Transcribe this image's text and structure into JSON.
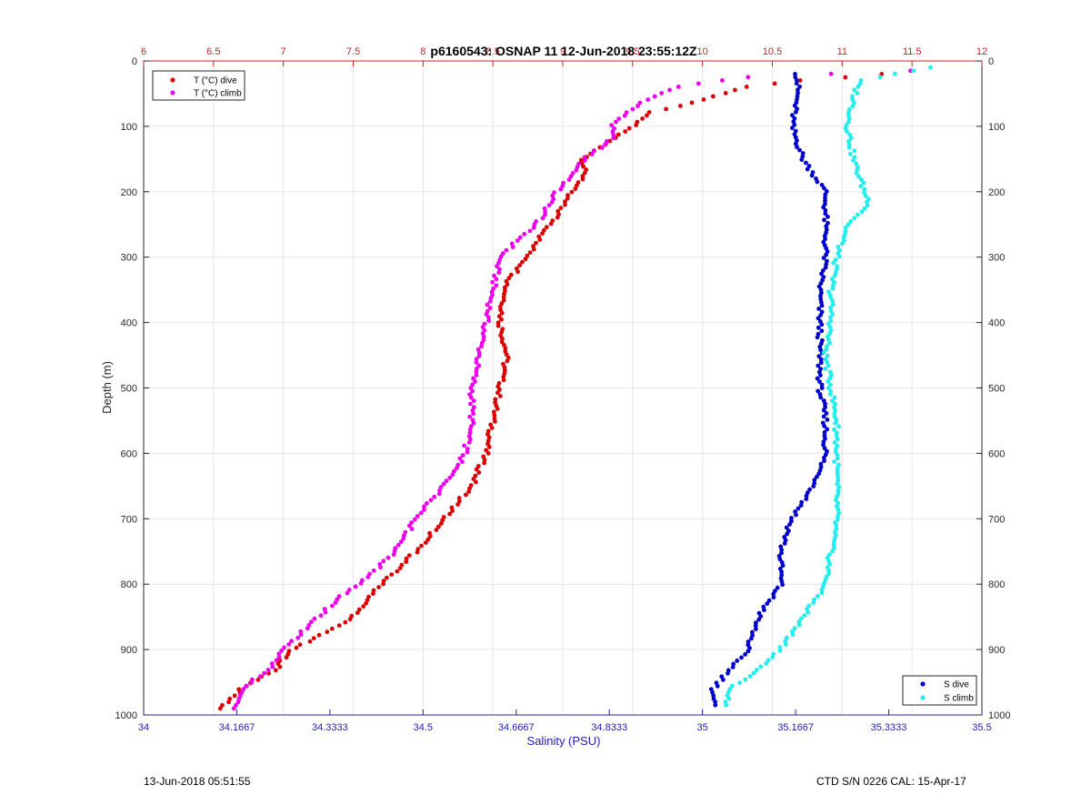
{
  "chart_data": {
    "type": "scatter",
    "title": "p6160543: OSNAP 11 12-Jun-2018 23:55:12Z",
    "ylabel": "Depth (m)",
    "xlabel_bottom": "Salinity (PSU)",
    "ylim": [
      0,
      1000
    ],
    "y_reversed": true,
    "x_bottom_lim": [
      34,
      35.5
    ],
    "x_top_lim": [
      6,
      12
    ],
    "y_ticks": [
      "0",
      "100",
      "200",
      "300",
      "400",
      "500",
      "600",
      "700",
      "800",
      "900",
      "1000"
    ],
    "x_bottom_ticks": [
      "34",
      "34.1667",
      "34.3333",
      "34.5",
      "34.6667",
      "34.8333",
      "35",
      "35.1667",
      "35.3333",
      "35.5"
    ],
    "x_top_ticks": [
      "6",
      "6.5",
      "7",
      "7.5",
      "8",
      "8.5",
      "9",
      "9.5",
      "10",
      "10.5",
      "11",
      "11.5",
      "12"
    ],
    "grid": true,
    "legend_temp_placement": "top-left",
    "legend_sal_placement": "bottom-right",
    "colors": {
      "t_dive": "#dd0000",
      "t_climb": "#ee00ee",
      "s_dive": "#0000cc",
      "s_climb": "#22eeee",
      "top_axis": "#cc2222",
      "bottom_axis": "#2222aa"
    },
    "series": [
      {
        "name": "T (°C) dive",
        "axis": "top",
        "color": "#dd0000",
        "profile": [
          [
            20,
            11.3
          ],
          [
            30,
            10.7
          ],
          [
            40,
            10.3
          ],
          [
            60,
            10.0
          ],
          [
            80,
            9.6
          ],
          [
            100,
            9.5
          ],
          [
            120,
            9.35
          ],
          [
            150,
            9.15
          ],
          [
            180,
            9.15
          ],
          [
            200,
            9.05
          ],
          [
            240,
            8.95
          ],
          [
            280,
            8.8
          ],
          [
            300,
            8.75
          ],
          [
            340,
            8.6
          ],
          [
            400,
            8.55
          ],
          [
            450,
            8.6
          ],
          [
            500,
            8.55
          ],
          [
            550,
            8.5
          ],
          [
            600,
            8.45
          ],
          [
            650,
            8.35
          ],
          [
            700,
            8.15
          ],
          [
            750,
            7.95
          ],
          [
            800,
            7.7
          ],
          [
            850,
            7.5
          ],
          [
            880,
            7.25
          ],
          [
            900,
            7.05
          ],
          [
            930,
            6.95
          ],
          [
            960,
            6.7
          ],
          [
            990,
            6.55
          ]
        ]
      },
      {
        "name": "T (°C) climb",
        "axis": "top",
        "color": "#ee00ee",
        "profile": [
          [
            15,
            11.5
          ],
          [
            25,
            10.3
          ],
          [
            40,
            9.8
          ],
          [
            60,
            9.6
          ],
          [
            80,
            9.45
          ],
          [
            100,
            9.35
          ],
          [
            120,
            9.35
          ],
          [
            150,
            9.15
          ],
          [
            180,
            9.05
          ],
          [
            200,
            8.95
          ],
          [
            240,
            8.85
          ],
          [
            280,
            8.65
          ],
          [
            300,
            8.55
          ],
          [
            350,
            8.5
          ],
          [
            400,
            8.45
          ],
          [
            450,
            8.4
          ],
          [
            500,
            8.35
          ],
          [
            550,
            8.35
          ],
          [
            600,
            8.3
          ],
          [
            650,
            8.15
          ],
          [
            700,
            7.95
          ],
          [
            750,
            7.8
          ],
          [
            800,
            7.55
          ],
          [
            820,
            7.4
          ],
          [
            850,
            7.25
          ],
          [
            880,
            7.1
          ],
          [
            900,
            7.0
          ],
          [
            930,
            6.9
          ],
          [
            960,
            6.7
          ],
          [
            990,
            6.65
          ]
        ]
      },
      {
        "name": "S dive",
        "axis": "bottom",
        "color": "#0000cc",
        "profile": [
          [
            20,
            35.17
          ],
          [
            50,
            35.17
          ],
          [
            100,
            35.16
          ],
          [
            150,
            35.18
          ],
          [
            200,
            35.22
          ],
          [
            250,
            35.22
          ],
          [
            300,
            35.22
          ],
          [
            350,
            35.21
          ],
          [
            400,
            35.21
          ],
          [
            450,
            35.21
          ],
          [
            500,
            35.21
          ],
          [
            550,
            35.22
          ],
          [
            600,
            35.22
          ],
          [
            650,
            35.2
          ],
          [
            700,
            35.16
          ],
          [
            750,
            35.14
          ],
          [
            800,
            35.14
          ],
          [
            850,
            35.1
          ],
          [
            900,
            35.08
          ],
          [
            930,
            35.05
          ],
          [
            960,
            35.02
          ],
          [
            985,
            35.02
          ]
        ]
      },
      {
        "name": "S climb",
        "axis": "bottom",
        "color": "#22eeee",
        "profile": [
          [
            10,
            35.41
          ],
          [
            30,
            35.28
          ],
          [
            60,
            35.27
          ],
          [
            100,
            35.26
          ],
          [
            150,
            35.27
          ],
          [
            200,
            35.29
          ],
          [
            220,
            35.3
          ],
          [
            250,
            35.26
          ],
          [
            300,
            35.24
          ],
          [
            350,
            35.23
          ],
          [
            400,
            35.23
          ],
          [
            450,
            35.22
          ],
          [
            500,
            35.23
          ],
          [
            550,
            35.24
          ],
          [
            600,
            35.24
          ],
          [
            650,
            35.24
          ],
          [
            700,
            35.24
          ],
          [
            750,
            35.23
          ],
          [
            800,
            35.22
          ],
          [
            850,
            35.18
          ],
          [
            900,
            35.14
          ],
          [
            930,
            35.1
          ],
          [
            960,
            35.05
          ],
          [
            985,
            35.04
          ]
        ]
      }
    ]
  },
  "footer": {
    "left": "13-Jun-2018 05:51:55",
    "right": "CTD S/N 0226  CAL: 15-Apr-17"
  }
}
